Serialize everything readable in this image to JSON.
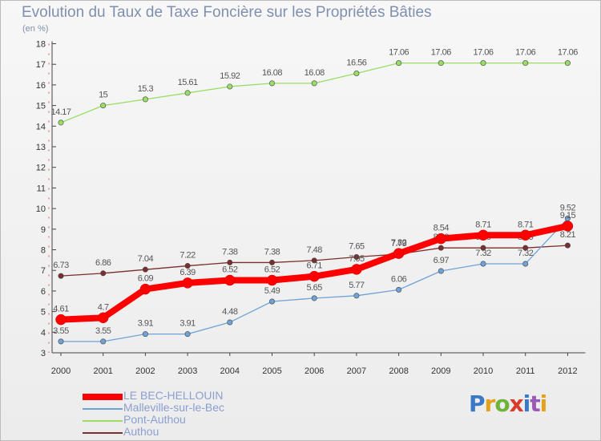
{
  "title": "Evolution du Taux de Taxe Foncière sur les Propriétés Bâties",
  "unit_label": "(en %)",
  "logo_text": "Proxiti",
  "chart_data": {
    "type": "line",
    "title": "Evolution du Taux de Taxe Foncière sur les Propriétés Bâties",
    "ylabel": "(en %)",
    "xlabel": "",
    "ylim": [
      3,
      18
    ],
    "grid": false,
    "legend_position": "bottom-left",
    "x": [
      "2000",
      "2001",
      "2002",
      "2003",
      "2004",
      "2005",
      "2006",
      "2007",
      "2008",
      "2009",
      "2010",
      "2011",
      "2012"
    ],
    "y_ticks": [
      "3",
      "4",
      "5",
      "6",
      "7",
      "8",
      "9",
      "10",
      "11",
      "12",
      "13",
      "14",
      "15",
      "16",
      "17",
      "18"
    ],
    "series": [
      {
        "name": "LE BEC-HELLOUIN",
        "color": "#ff0000",
        "values": [
          4.61,
          4.7,
          6.09,
          6.39,
          6.52,
          6.52,
          6.71,
          7.05,
          7.82,
          8.54,
          8.71,
          8.71,
          9.15
        ],
        "labels": [
          "4.61",
          "4.7",
          "6.09",
          "6.39",
          "6.52",
          "6.52",
          "6.71",
          "7.05",
          "7.82",
          "8.54",
          "8.71",
          "8.71",
          "9.15"
        ]
      },
      {
        "name": "Malleville-sur-le-Bec",
        "color": "#6fa3d6",
        "values": [
          3.55,
          3.55,
          3.91,
          3.91,
          4.48,
          5.49,
          5.65,
          5.77,
          6.06,
          6.97,
          7.32,
          7.32,
          9.52
        ],
        "labels": [
          "3.55",
          "3.55",
          "3.91",
          "3.91",
          "4.48",
          "5.49",
          "5.65",
          "5.77",
          "6.06",
          "6.97",
          "7.32",
          "7.32",
          "9.52"
        ]
      },
      {
        "name": "Pont-Authou",
        "color": "#99dd66",
        "values": [
          14.17,
          15,
          15.3,
          15.61,
          15.92,
          16.08,
          16.08,
          16.56,
          17.06,
          17.06,
          17.06,
          17.06,
          17.06
        ],
        "labels": [
          "14.17",
          "15",
          "15.3",
          "15.61",
          "15.92",
          "16.08",
          "16.08",
          "16.56",
          "17.06",
          "17.06",
          "17.06",
          "17.06",
          "17.06"
        ]
      },
      {
        "name": "Authou",
        "color": "#7a2e2e",
        "values": [
          6.73,
          6.86,
          7.04,
          7.22,
          7.38,
          7.38,
          7.48,
          7.65,
          7.79,
          8.09,
          8.09,
          8.09,
          8.21
        ],
        "labels": [
          "6.73",
          "6.86",
          "7.04",
          "7.22",
          "7.38",
          "7.38",
          "7.48",
          "7.65",
          "7.79",
          "8.09",
          "8.09",
          "8.09",
          "8.21"
        ]
      }
    ]
  }
}
